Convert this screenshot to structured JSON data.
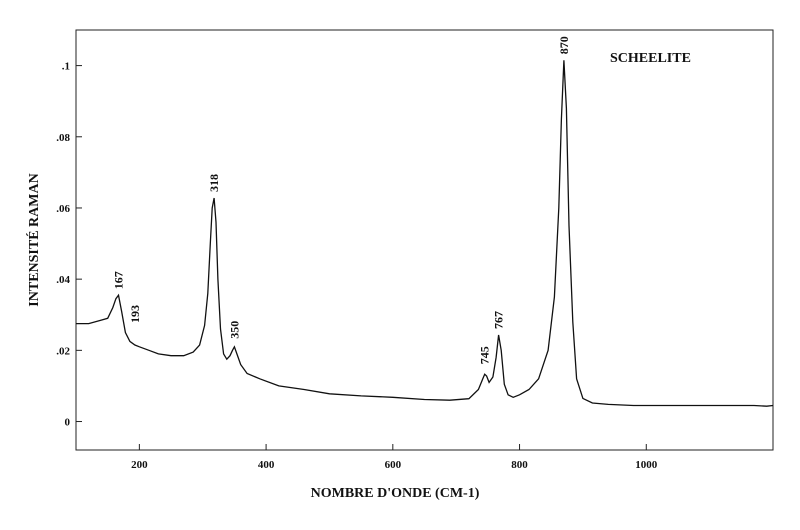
{
  "chart_data": {
    "type": "line",
    "title": "SCHEELITE",
    "xlabel": "NOMBRE D'ONDE (CM-1)",
    "ylabel": "INTENSITÉ RAMAN",
    "xlim": [
      100,
      1200
    ],
    "ylim": [
      -0.008,
      0.11
    ],
    "xticks": [
      200,
      400,
      600,
      800,
      1000
    ],
    "xtick_labels": [
      "200",
      "400",
      "600",
      "800",
      "1000"
    ],
    "yticks": [
      0,
      0.02,
      0.04,
      0.06,
      0.08,
      0.1
    ],
    "ytick_labels": [
      "0",
      ".02",
      ".04",
      ".06",
      ".08",
      ".1"
    ],
    "grid": false,
    "colors": {
      "line": "#111111",
      "axis": "#222222"
    },
    "peak_labels": [
      {
        "x": 167,
        "label": "167"
      },
      {
        "x": 193,
        "label": "193"
      },
      {
        "x": 318,
        "label": "318"
      },
      {
        "x": 350,
        "label": "350"
      },
      {
        "x": 745,
        "label": "745"
      },
      {
        "x": 767,
        "label": "767"
      },
      {
        "x": 870,
        "label": "870"
      }
    ],
    "series": [
      {
        "x": [
          100,
          120,
          140,
          150,
          158,
          163,
          167,
          172,
          178,
          185,
          193,
          200,
          215,
          230,
          250,
          270,
          285,
          295,
          303,
          308,
          312,
          315,
          318,
          321,
          324,
          328,
          333,
          338,
          343,
          347,
          350,
          354,
          360,
          370,
          390,
          420,
          460,
          500,
          550,
          600,
          650,
          690,
          720,
          735,
          742,
          745,
          748,
          752,
          758,
          763,
          767,
          771,
          776,
          782,
          790,
          800,
          815,
          830,
          845,
          855,
          862,
          866,
          870,
          874,
          878,
          884,
          890,
          900,
          915,
          940,
          980,
          1020,
          1060,
          1100,
          1140,
          1170,
          1190,
          1200
        ],
        "y": [
          0.0275,
          0.0275,
          0.0285,
          0.029,
          0.032,
          0.0345,
          0.0355,
          0.031,
          0.025,
          0.0225,
          0.0215,
          0.021,
          0.02,
          0.019,
          0.0185,
          0.0185,
          0.0195,
          0.0215,
          0.027,
          0.036,
          0.05,
          0.06,
          0.0628,
          0.056,
          0.04,
          0.026,
          0.019,
          0.0175,
          0.0185,
          0.02,
          0.021,
          0.019,
          0.016,
          0.0135,
          0.012,
          0.01,
          0.009,
          0.0078,
          0.0072,
          0.0068,
          0.0062,
          0.006,
          0.0064,
          0.009,
          0.012,
          0.0133,
          0.0128,
          0.011,
          0.0125,
          0.018,
          0.0243,
          0.02,
          0.0105,
          0.0075,
          0.0068,
          0.0075,
          0.009,
          0.012,
          0.02,
          0.035,
          0.06,
          0.085,
          0.1015,
          0.088,
          0.055,
          0.028,
          0.012,
          0.0065,
          0.0052,
          0.0048,
          0.0045,
          0.0045,
          0.0045,
          0.0045,
          0.0045,
          0.0045,
          0.0043,
          0.0045
        ]
      }
    ]
  }
}
